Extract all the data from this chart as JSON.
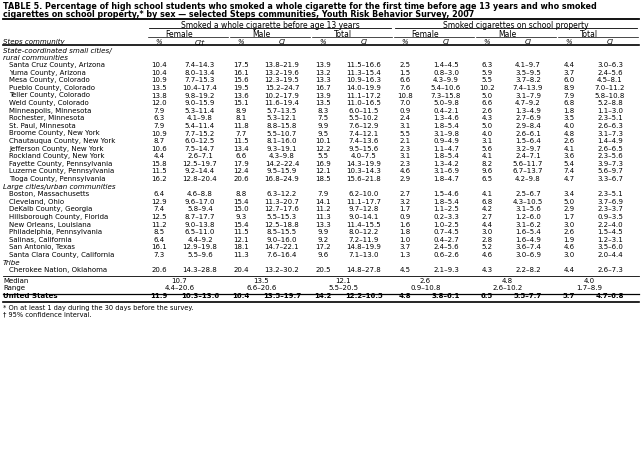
{
  "title_line1": "TABLE 5. Percentage of high school students who smoked a whole cigarette for the first time before age 13 years and who smoked",
  "title_line2": "cigarettes on school property,* by sex — selected Steps communities, Youth Risk Behavior Survey, 2007",
  "col_group1": "Smoked a whole cigarette before age 13 years",
  "col_group2": "Smoked cigarettes on school property",
  "sub_labels": [
    "Female",
    "Male",
    "Total",
    "Female",
    "Male",
    "Total"
  ],
  "col_h": [
    "%",
    "CI†",
    "%",
    "CI",
    "%",
    "CI",
    "%",
    "CI",
    "%",
    "CI",
    "%",
    "CI"
  ],
  "section1_label": "State-coordinated small cities/",
  "section1_label2": "rural communities",
  "section2_label": "Large cities/urban communities",
  "section3_label": "Tribe",
  "rows_s1": [
    [
      "Santa Cruz County, Arizona",
      "10.4",
      "7.4–14.3",
      "17.5",
      "13.8–21.9",
      "13.9",
      "11.5–16.6",
      "2.5",
      "1.4–4.5",
      "6.3",
      "4.1–9.7",
      "4.4",
      "3.0–6.3"
    ],
    [
      "Yuma County, Arizona",
      "10.4",
      "8.0–13.4",
      "16.1",
      "13.2–19.6",
      "13.2",
      "11.3–15.4",
      "1.5",
      "0.8–3.0",
      "5.9",
      "3.5–9.5",
      "3.7",
      "2.4–5.6"
    ],
    [
      "Mesa County, Colorado",
      "10.9",
      "7.7–15.3",
      "15.6",
      "12.3–19.5",
      "13.3",
      "10.9–16.3",
      "6.6",
      "4.3–9.9",
      "5.5",
      "3.7–8.2",
      "6.0",
      "4.5–8.1"
    ],
    [
      "Pueblo County, Colorado",
      "13.5",
      "10.4–17.4",
      "19.5",
      "15.2–24.7",
      "16.7",
      "14.0–19.9",
      "7.6",
      "5.4–10.6",
      "10.2",
      "7.4–13.9",
      "8.9",
      "7.0–11.2"
    ],
    [
      "Teller County, Colorado",
      "13.8",
      "9.8–19.2",
      "13.6",
      "10.2–17.9",
      "13.9",
      "11.1–17.2",
      "10.8",
      "7.3–15.8",
      "5.0",
      "3.1–7.9",
      "7.9",
      "5.8–10.8"
    ],
    [
      "Weld County, Colorado",
      "12.0",
      "9.0–15.9",
      "15.1",
      "11.6–19.4",
      "13.5",
      "11.0–16.5",
      "7.0",
      "5.0–9.8",
      "6.6",
      "4.7–9.2",
      "6.8",
      "5.2–8.8"
    ],
    [
      "Minneapolis, Minnesota",
      "7.9",
      "5.3–11.4",
      "8.9",
      "5.7–13.5",
      "8.3",
      "6.0–11.5",
      "0.9",
      "0.4–2.1",
      "2.6",
      "1.3–4.9",
      "1.8",
      "1.1–3.0"
    ],
    [
      "Rochester, Minnesota",
      "6.3",
      "4.1–9.8",
      "8.1",
      "5.3–12.1",
      "7.5",
      "5.5–10.2",
      "2.4",
      "1.3–4.6",
      "4.3",
      "2.7–6.9",
      "3.5",
      "2.3–5.1"
    ],
    [
      "St. Paul, Minnesota",
      "7.9",
      "5.4–11.4",
      "11.8",
      "8.8–15.8",
      "9.9",
      "7.6–12.9",
      "3.1",
      "1.8–5.4",
      "5.0",
      "2.9–8.4",
      "4.0",
      "2.6–6.3"
    ],
    [
      "Broome County, New York",
      "10.9",
      "7.7–15.2",
      "7.7",
      "5.5–10.7",
      "9.5",
      "7.4–12.1",
      "5.5",
      "3.1–9.8",
      "4.0",
      "2.6–6.1",
      "4.8",
      "3.1–7.3"
    ],
    [
      "Chautauqua County, New York",
      "8.7",
      "6.0–12.5",
      "11.5",
      "8.1–16.0",
      "10.1",
      "7.4–13.6",
      "2.1",
      "0.9–4.9",
      "3.1",
      "1.5–6.4",
      "2.6",
      "1.4–4.9"
    ],
    [
      "Jefferson County, New York",
      "10.6",
      "7.5–14.7",
      "13.4",
      "9.3–19.1",
      "12.2",
      "9.5–15.6",
      "2.3",
      "1.1–4.7",
      "5.6",
      "3.2–9.7",
      "4.1",
      "2.6–6.5"
    ],
    [
      "Rockland County, New York",
      "4.4",
      "2.6–7.1",
      "6.6",
      "4.3–9.8",
      "5.5",
      "4.0–7.5",
      "3.1",
      "1.8–5.4",
      "4.1",
      "2.4–7.1",
      "3.6",
      "2.3–5.6"
    ],
    [
      "Fayette County, Pennsylvania",
      "15.8",
      "12.5–19.7",
      "17.9",
      "14.2–22.4",
      "16.9",
      "14.3–19.9",
      "2.3",
      "1.3–4.2",
      "8.2",
      "5.6–11.7",
      "5.4",
      "3.9–7.3"
    ],
    [
      "Luzerne County, Pennsylvania",
      "11.5",
      "9.2–14.4",
      "12.4",
      "9.5–15.9",
      "12.1",
      "10.3–14.3",
      "4.6",
      "3.1–6.9",
      "9.6",
      "6.7–13.7",
      "7.4",
      "5.6–9.7"
    ],
    [
      "Tioga County, Pennsylvania",
      "16.2",
      "12.8–20.4",
      "20.6",
      "16.8–24.9",
      "18.5",
      "15.6–21.8",
      "2.9",
      "1.8–4.7",
      "6.5",
      "4.2–9.8",
      "4.7",
      "3.3–6.7"
    ]
  ],
  "rows_s2": [
    [
      "Boston, Massachusetts",
      "6.4",
      "4.6–8.8",
      "8.8",
      "6.3–12.2",
      "7.9",
      "6.2–10.0",
      "2.7",
      "1.5–4.6",
      "4.1",
      "2.5–6.7",
      "3.4",
      "2.3–5.1"
    ],
    [
      "Cleveland, Ohio",
      "12.9",
      "9.6–17.0",
      "15.4",
      "11.3–20.7",
      "14.1",
      "11.1–17.7",
      "3.2",
      "1.8–5.4",
      "6.8",
      "4.3–10.5",
      "5.0",
      "3.7–6.9"
    ],
    [
      "DeKalb County, Georgia",
      "7.4",
      "5.8–9.4",
      "15.0",
      "12.7–17.6",
      "11.2",
      "9.7–12.8",
      "1.7",
      "1.1–2.5",
      "4.2",
      "3.1–5.6",
      "2.9",
      "2.3–3.7"
    ],
    [
      "Hillsborough County, Florida",
      "12.5",
      "8.7–17.7",
      "9.3",
      "5.5–15.3",
      "11.3",
      "9.0–14.1",
      "0.9",
      "0.2–3.3",
      "2.7",
      "1.2–6.0",
      "1.7",
      "0.9–3.5"
    ],
    [
      "New Orleans, Louisiana",
      "11.2",
      "9.0–13.8",
      "15.4",
      "12.5–18.8",
      "13.3",
      "11.4–15.5",
      "1.6",
      "1.0–2.5",
      "4.4",
      "3.1–6.2",
      "3.0",
      "2.2–4.0"
    ],
    [
      "Philadelphia, Pennsylvania",
      "8.5",
      "6.5–11.0",
      "11.5",
      "8.5–15.5",
      "9.9",
      "8.0–12.2",
      "1.8",
      "0.7–4.5",
      "3.0",
      "1.6–5.4",
      "2.6",
      "1.5–4.5"
    ],
    [
      "Salinas, California",
      "6.4",
      "4.4–9.2",
      "12.1",
      "9.0–16.0",
      "9.2",
      "7.2–11.9",
      "1.0",
      "0.4–2.7",
      "2.8",
      "1.6–4.9",
      "1.9",
      "1.2–3.1"
    ],
    [
      "San Antonio, Texas",
      "16.1",
      "12.9–19.8",
      "18.1",
      "14.7–22.1",
      "17.2",
      "14.8–19.9",
      "3.7",
      "2.4–5.6",
      "5.2",
      "3.6–7.4",
      "4.6",
      "3.5–6.0"
    ],
    [
      "Santa Clara County, California",
      "7.3",
      "5.5–9.6",
      "11.3",
      "7.6–16.4",
      "9.6",
      "7.1–13.0",
      "1.3",
      "0.6–2.6",
      "4.6",
      "3.0–6.9",
      "3.0",
      "2.0–4.4"
    ]
  ],
  "row_tribe": [
    "Cherokee Nation, Oklahoma",
    "20.6",
    "14.3–28.8",
    "20.4",
    "13.2–30.2",
    "20.5",
    "14.8–27.8",
    "4.5",
    "2.1–9.3",
    "4.3",
    "2.2–8.2",
    "4.4",
    "2.6–7.3"
  ],
  "median_vals": [
    "10.7",
    "13.5",
    "12.1",
    "2.6",
    "4.8",
    "4.0"
  ],
  "range_vals": [
    "4.4–20.6",
    "6.6–20.6",
    "5.5–20.5",
    "0.9–10.8",
    "2.6–10.2",
    "1.7–8.9"
  ],
  "us_row": [
    "United States",
    "11.9",
    "10.3–13.6",
    "16.4",
    "13.5–19.7",
    "14.2",
    "12.2–16.5",
    "4.8",
    "3.8–6.1",
    "6.5",
    "5.5–7.7",
    "5.7",
    "4.7–6.8"
  ],
  "footnote1": "* On at least 1 day during the 30 days before the survey.",
  "footnote2": "† 95% confidence interval."
}
